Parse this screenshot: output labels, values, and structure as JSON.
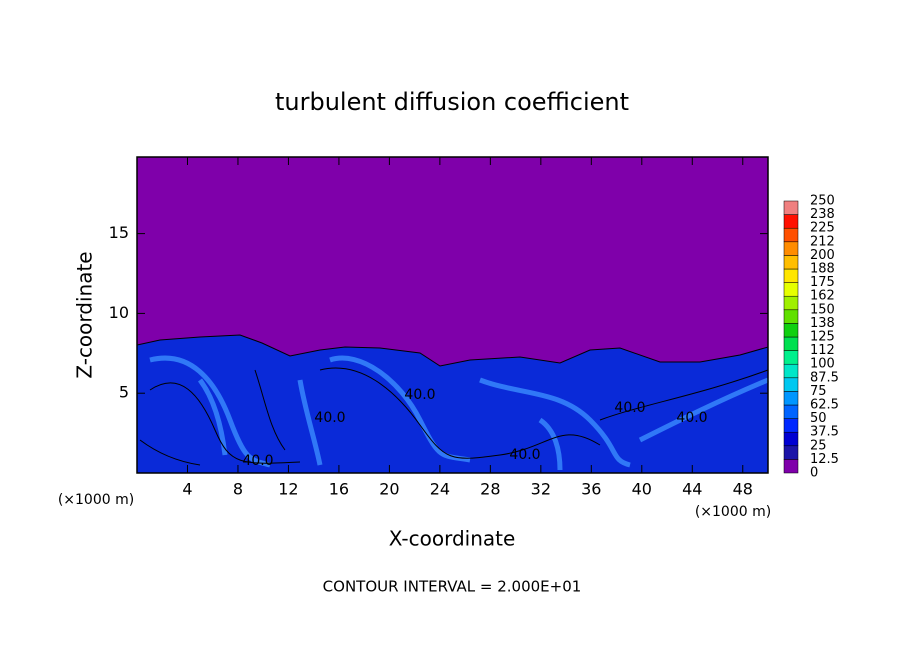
{
  "chart_data": {
    "type": "contour",
    "title": "turbulent diffusion coefficient",
    "x_label": "X-coordinate",
    "y_label": "Z-coordinate",
    "x_unit_labels": [
      "(×1000 m)",
      "(×1000 m)"
    ],
    "footer": "CONTOUR INTERVAL = 2.000E+01",
    "xlim": [
      0,
      50
    ],
    "xticks": [
      4,
      8,
      12,
      16,
      20,
      24,
      28,
      32,
      36,
      40,
      44,
      48
    ],
    "ylim": [
      0,
      19.8
    ],
    "yticks": [
      5,
      10,
      15
    ],
    "contour_labels": [
      "40.0",
      "40.0",
      "40.0",
      "40.0",
      "40.0",
      "40.0"
    ],
    "colorbar": {
      "levels": [
        0,
        12.5,
        25,
        37.5,
        50,
        62.5,
        75,
        87.5,
        100,
        112,
        125,
        138,
        150,
        162,
        175,
        188,
        200,
        212,
        225,
        238,
        250
      ],
      "colors": [
        "#7f00aa",
        "#1c14a8",
        "#0000d2",
        "#0028ff",
        "#0064ff",
        "#0096ff",
        "#00c8f0",
        "#00e6c8",
        "#00f08c",
        "#00e050",
        "#10d010",
        "#60e000",
        "#a0f000",
        "#e6ff00",
        "#ffe600",
        "#ffbe00",
        "#ff8c00",
        "#ff5000",
        "#ff1000",
        "#f08080"
      ]
    }
  }
}
